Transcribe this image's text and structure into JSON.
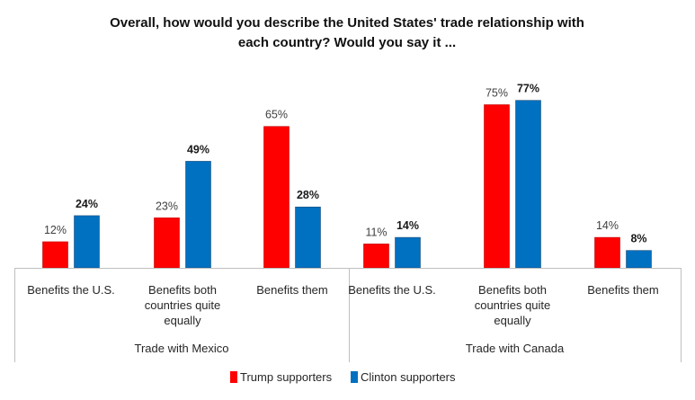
{
  "chart_data": {
    "type": "bar",
    "title": "Overall, how would you describe the United States' trade relationship with each country? Would you say it ...",
    "title_lines": [
      "Overall, how would you describe the United States' trade relationship with",
      "each country? Would you say it ..."
    ],
    "groups": [
      {
        "label": "Trade with Mexico",
        "categories": [
          {
            "label_lines": [
              "Benefits the U.S."
            ],
            "values": [
              12,
              24
            ]
          },
          {
            "label_lines": [
              "Benefits both",
              "countries quite",
              "equally"
            ],
            "values": [
              23,
              49
            ]
          },
          {
            "label_lines": [
              "Benefits them"
            ],
            "values": [
              65,
              28
            ]
          }
        ]
      },
      {
        "label": "Trade with Canada",
        "categories": [
          {
            "label_lines": [
              "Benefits the U.S."
            ],
            "values": [
              11,
              14
            ]
          },
          {
            "label_lines": [
              "Benefits both",
              "countries quite",
              "equally"
            ],
            "values": [
              75,
              77
            ]
          },
          {
            "label_lines": [
              "Benefits them"
            ],
            "values": [
              14,
              8
            ]
          }
        ]
      }
    ],
    "series": [
      {
        "name": "Trump supporters",
        "color": "#ff0000",
        "label_weight": "normal"
      },
      {
        "name": "Clinton supporters",
        "color": "#0070c0",
        "label_weight": "bold"
      }
    ],
    "value_suffix": "%",
    "ylim": [
      0,
      100
    ],
    "grid": false,
    "legend_position": "bottom"
  }
}
